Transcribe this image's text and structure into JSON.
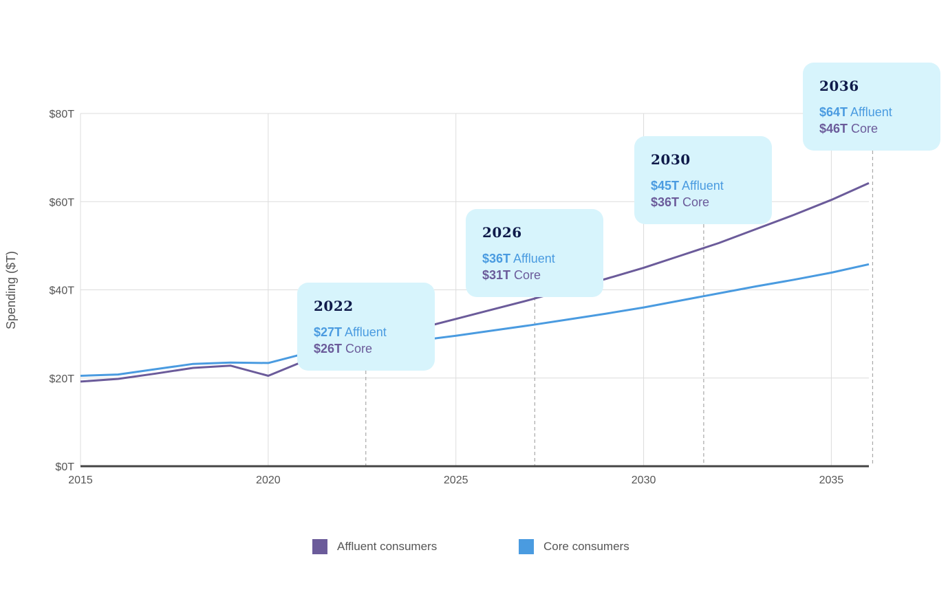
{
  "chart_data": {
    "type": "line",
    "ylabel": "Spending ($T)",
    "xlim": [
      2015,
      2036
    ],
    "ylim": [
      0,
      80
    ],
    "x_ticks": [
      2015,
      2020,
      2025,
      2030,
      2035
    ],
    "x_tick_labels": [
      "2015",
      "2020",
      "2025",
      "2030",
      "2035"
    ],
    "y_ticks": [
      0,
      20,
      40,
      60,
      80
    ],
    "y_tick_labels": [
      "$0T",
      "$20T",
      "$40T",
      "$60T",
      "$80T"
    ],
    "grid": true,
    "series": [
      {
        "name": "Affluent consumers",
        "color": "#6b5b9a",
        "x": [
          2015,
          2016,
          2017,
          2018,
          2019,
          2020,
          2021,
          2022,
          2023,
          2024,
          2025,
          2026,
          2027,
          2028,
          2029,
          2030,
          2031,
          2032,
          2033,
          2034,
          2035,
          2036
        ],
        "values": [
          19.2,
          19.8,
          21.0,
          22.3,
          22.8,
          20.5,
          24.0,
          27.0,
          29.2,
          31.2,
          33.4,
          35.6,
          37.8,
          40.2,
          42.5,
          45.0,
          47.8,
          50.6,
          53.8,
          57.0,
          60.4,
          64.2
        ]
      },
      {
        "name": "Core consumers",
        "color": "#4a9be0",
        "x": [
          2015,
          2016,
          2017,
          2018,
          2019,
          2020,
          2021,
          2022,
          2023,
          2024,
          2025,
          2026,
          2027,
          2028,
          2029,
          2030,
          2031,
          2032,
          2033,
          2034,
          2035,
          2036
        ],
        "values": [
          20.5,
          20.8,
          22.0,
          23.2,
          23.5,
          23.4,
          25.6,
          26.4,
          27.5,
          28.5,
          29.6,
          30.8,
          32.0,
          33.3,
          34.6,
          36.0,
          37.6,
          39.2,
          40.8,
          42.3,
          43.9,
          45.8
        ]
      }
    ],
    "annotations": [
      {
        "year": "2022",
        "affluent_value": "$27T",
        "affluent_label": "Affluent",
        "core_value": "$26T",
        "core_label": "Core",
        "x": 2022.6
      },
      {
        "year": "2026",
        "affluent_value": "$36T",
        "affluent_label": "Affluent",
        "core_value": "$31T",
        "core_label": "Core",
        "x": 2027.1
      },
      {
        "year": "2030",
        "affluent_value": "$45T",
        "affluent_label": "Affluent",
        "core_value": "$36T",
        "core_label": "Core",
        "x": 2031.6
      },
      {
        "year": "2036",
        "affluent_value": "$64T",
        "affluent_label": "Affluent",
        "core_value": "$46T",
        "core_label": "Core",
        "x": 2036.1
      }
    ],
    "legend": [
      {
        "label": "Affluent consumers",
        "color": "#6b5b9a"
      },
      {
        "label": "Core consumers",
        "color": "#4a9be0"
      }
    ],
    "legend_placement": "bottom"
  }
}
